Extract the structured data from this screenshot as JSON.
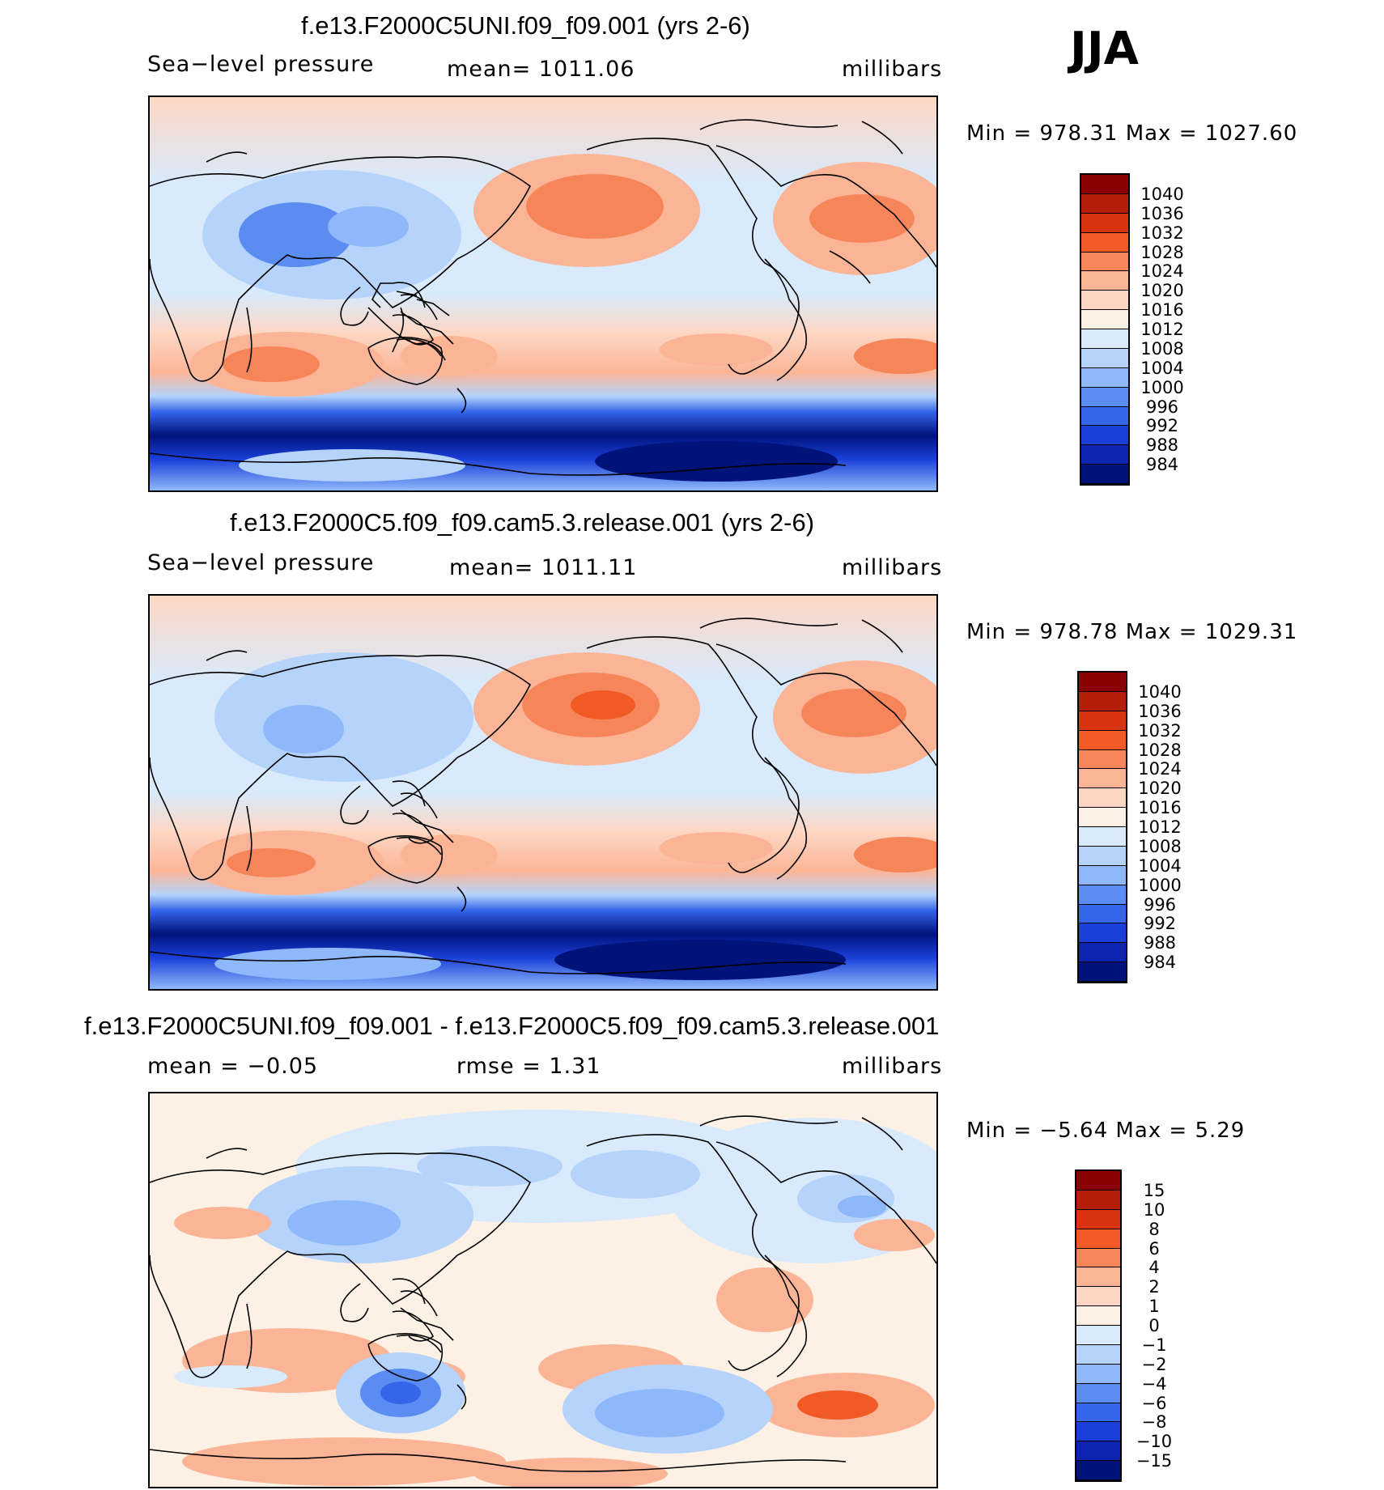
{
  "season": "JJA",
  "panels": [
    {
      "title": "f.e13.F2000C5UNI.f09_f09.001 (yrs 2-6)",
      "left_label": "Sea−level pressure",
      "center_label": "mean=  1011.06",
      "units": "millibars",
      "minmax": "Min  =  978.31  Max  =  1027.60",
      "colorbar_labels": [
        "1040",
        "1036",
        "1032",
        "1028",
        "1024",
        "1020",
        "1016",
        "1012",
        "1008",
        "1004",
        "1000",
        "996",
        "992",
        "988",
        "984"
      ],
      "colorbar_colors": [
        "#8b0000",
        "#b51e0a",
        "#d93310",
        "#f15a24",
        "#f7855a",
        "#fbb596",
        "#fdd7c4",
        "#fdf1e6",
        "#d8eafc",
        "#b5d3fb",
        "#8eb8fa",
        "#5a8cf2",
        "#3566ea",
        "#1a3fd8",
        "#0c24b0",
        "#00137a"
      ]
    },
    {
      "title": "f.e13.F2000C5.f09_f09.cam5.3.release.001 (yrs 2-6)",
      "left_label": "Sea−level pressure",
      "center_label": "mean=  1011.11",
      "units": "millibars",
      "minmax": "Min  =  978.78  Max  =  1029.31",
      "colorbar_labels": [
        "1040",
        "1036",
        "1032",
        "1028",
        "1024",
        "1020",
        "1016",
        "1012",
        "1008",
        "1004",
        "1000",
        "996",
        "992",
        "988",
        "984"
      ],
      "colorbar_colors": [
        "#8b0000",
        "#b51e0a",
        "#d93310",
        "#f15a24",
        "#f7855a",
        "#fbb596",
        "#fdd7c4",
        "#fdf1e6",
        "#d8eafc",
        "#b5d3fb",
        "#8eb8fa",
        "#5a8cf2",
        "#3566ea",
        "#1a3fd8",
        "#0c24b0",
        "#00137a"
      ]
    },
    {
      "title": "f.e13.F2000C5UNI.f09_f09.001 - f.e13.F2000C5.f09_f09.cam5.3.release.001",
      "left_label": "mean  =   −0.05",
      "center_label": "rmse  =     1.31",
      "units": "millibars",
      "minmax": "Min  =    −5.64  Max  =     5.29",
      "colorbar_labels": [
        "15",
        "10",
        "8",
        "6",
        "4",
        "2",
        "1",
        "0",
        "−1",
        "−2",
        "−4",
        "−6",
        "−8",
        "−10",
        "−15"
      ],
      "colorbar_colors": [
        "#8b0000",
        "#b51e0a",
        "#d93310",
        "#f15a24",
        "#f7855a",
        "#fbb596",
        "#fdd7c4",
        "#fdf1e6",
        "#d8eafc",
        "#b5d3fb",
        "#8eb8fa",
        "#5a8cf2",
        "#3566ea",
        "#1a3fd8",
        "#0c24b0",
        "#00137a"
      ]
    }
  ]
}
